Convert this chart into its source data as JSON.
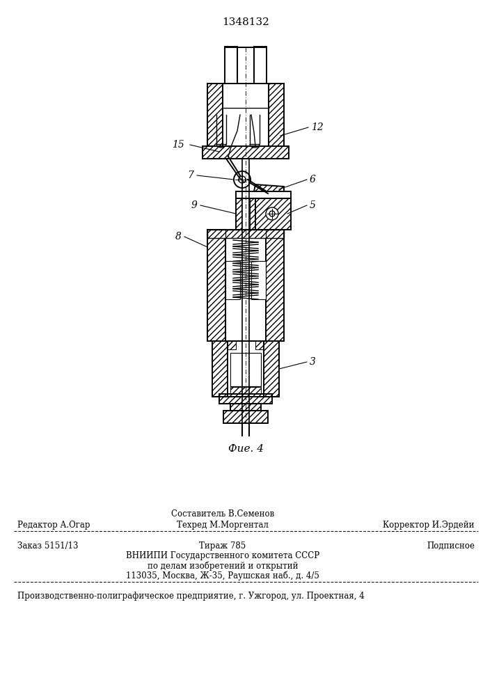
{
  "patent_number": "1348132",
  "figure_label": "Фие. 4",
  "bg": "#ffffff",
  "lc": "#000000",
  "footer": {
    "l1_top": "Составитель В.Семенов",
    "l1_left": "Редактор А.Огар",
    "l1_center": "Техред М.Моргентал",
    "l1_right": "Корректор И.Эрдейи",
    "l2_left": "Заказ 5151/13",
    "l2_center1": "Тираж 785",
    "l2_right": "Подписное",
    "l2_center2": "ВНИИПИ Государственного комитета СССР",
    "l2_center3": "по делам изобретений и открытий",
    "l2_center4": "113035, Москва, Ж-35, Раушская наб., д. 4/5",
    "l3": "Производственно-полиграфическое предприятие, г. Ужгород, ул. Проектная, 4"
  }
}
